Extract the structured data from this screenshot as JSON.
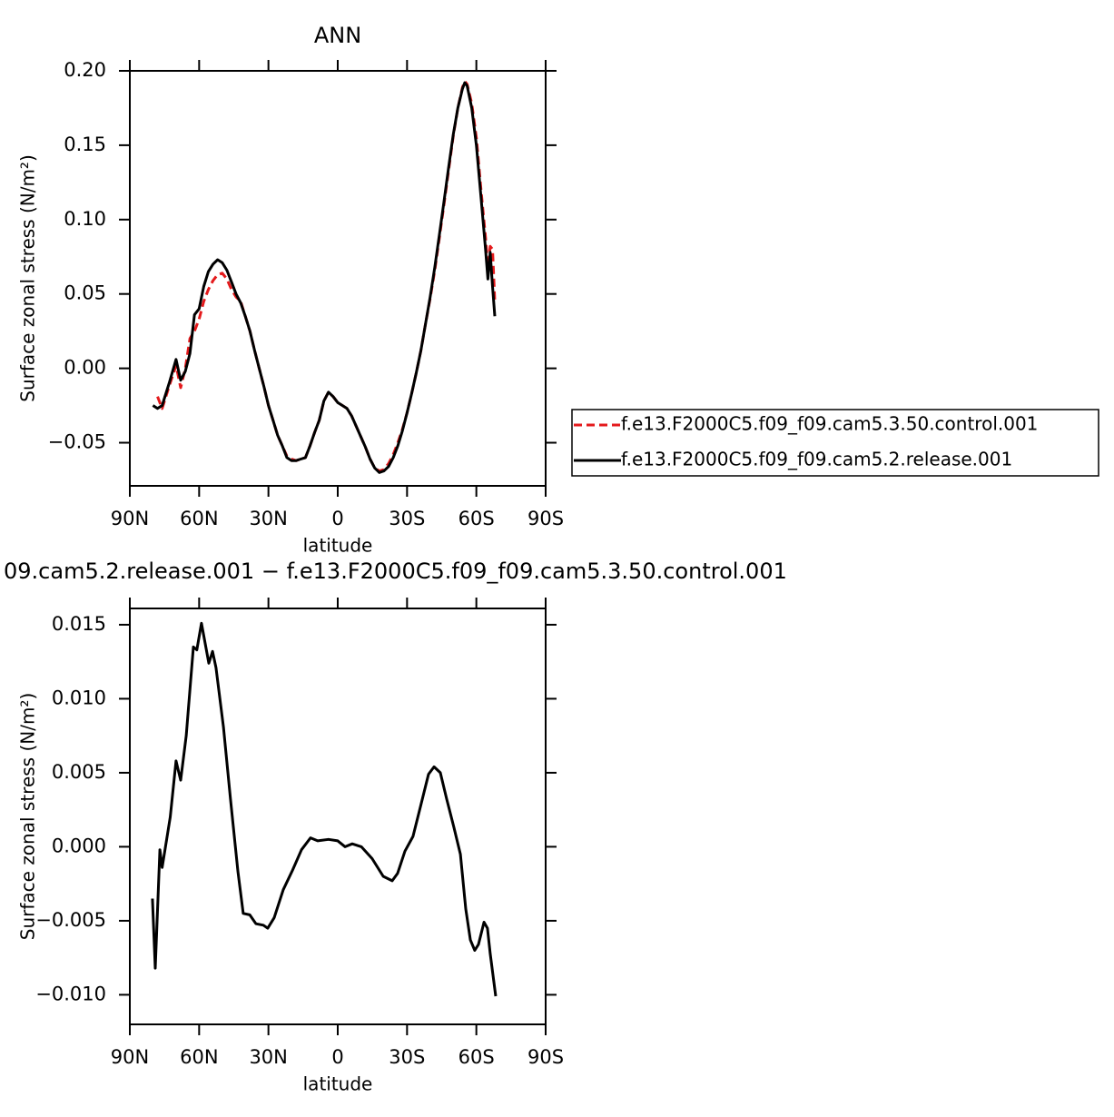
{
  "chart_data": [
    {
      "type": "line",
      "title": "ANN",
      "xlabel": "latitude",
      "ylabel": "Surface zonal stress (N/m²)",
      "x": [
        80,
        78,
        76,
        73,
        70,
        68,
        66,
        64,
        62,
        60,
        58,
        56,
        54,
        52,
        50,
        48,
        46,
        44,
        42,
        40,
        38,
        36,
        34,
        32,
        30,
        28,
        26,
        24,
        22,
        20,
        18,
        16,
        14,
        12,
        10,
        8,
        6,
        4,
        2,
        0,
        -2,
        -4,
        -6,
        -8,
        -10,
        -12,
        -14,
        -16,
        -18,
        -20,
        -22,
        -24,
        -26,
        -28,
        -30,
        -32,
        -34,
        -36,
        -38,
        -40,
        -42,
        -44,
        -46,
        -48,
        -50,
        -52,
        -54,
        -55,
        -56,
        -58,
        -60,
        -62,
        -64,
        -65,
        -66,
        -67,
        -68
      ],
      "series": [
        {
          "name": "f.e13.F2000C5.f09_f09.cam5.3.50.control.001",
          "color": "#e41a1c",
          "dash": true,
          "values": [
            null,
            -0.019,
            -0.027,
            -0.012,
            0.002,
            -0.013,
            0.0,
            0.02,
            0.025,
            0.033,
            0.045,
            0.053,
            0.059,
            0.063,
            0.064,
            0.06,
            0.053,
            0.048,
            0.045,
            0.035,
            0.025,
            0.012,
            0.0,
            -0.012,
            -0.025,
            -0.035,
            -0.045,
            -0.052,
            -0.059,
            -0.061,
            -0.062,
            -0.061,
            -0.06,
            -0.052,
            -0.043,
            -0.035,
            -0.022,
            -0.016,
            -0.019,
            -0.023,
            -0.025,
            -0.027,
            -0.032,
            -0.039,
            -0.046,
            -0.053,
            -0.061,
            -0.067,
            -0.069,
            -0.068,
            -0.064,
            -0.058,
            -0.05,
            -0.041,
            -0.03,
            -0.017,
            -0.003,
            0.012,
            0.03,
            0.047,
            0.066,
            0.088,
            0.11,
            0.133,
            0.156,
            0.175,
            0.189,
            0.193,
            0.191,
            0.178,
            0.155,
            0.12,
            0.088,
            0.068,
            0.082,
            0.08,
            0.045
          ]
        },
        {
          "name": "f.e13.F2000C5.f09_f09.cam5.2.release.001",
          "color": "#000000",
          "dash": false,
          "values": [
            -0.025,
            -0.027,
            -0.025,
            -0.01,
            0.006,
            -0.008,
            -0.002,
            0.01,
            0.036,
            0.04,
            0.055,
            0.065,
            0.07,
            0.073,
            0.071,
            0.066,
            0.058,
            0.05,
            0.044,
            0.035,
            0.025,
            0.012,
            0.0,
            -0.012,
            -0.025,
            -0.035,
            -0.045,
            -0.052,
            -0.06,
            -0.062,
            -0.062,
            -0.061,
            -0.06,
            -0.052,
            -0.043,
            -0.035,
            -0.022,
            -0.016,
            -0.019,
            -0.023,
            -0.025,
            -0.027,
            -0.032,
            -0.039,
            -0.046,
            -0.053,
            -0.061,
            -0.067,
            -0.07,
            -0.069,
            -0.066,
            -0.06,
            -0.052,
            -0.042,
            -0.03,
            -0.017,
            -0.003,
            0.012,
            0.03,
            0.048,
            0.068,
            0.09,
            0.112,
            0.135,
            0.157,
            0.175,
            0.188,
            0.192,
            0.19,
            0.175,
            0.15,
            0.115,
            0.08,
            0.06,
            0.078,
            0.055,
            0.035
          ]
        }
      ],
      "xlim": [
        90,
        -90
      ],
      "xticks": [
        {
          "value": 90,
          "label": "90N"
        },
        {
          "value": 60,
          "label": "60N"
        },
        {
          "value": 30,
          "label": "30N"
        },
        0,
        {
          "value": -30,
          "label": "30S"
        },
        {
          "value": -60,
          "label": "60S"
        },
        {
          "value": -90,
          "label": "90S"
        }
      ],
      "ylim": [
        -0.079,
        0.2
      ],
      "yticks": [
        {
          "value": -0.05,
          "label": "−0.05"
        },
        {
          "value": 0,
          "label": "0.00"
        },
        0.05,
        {
          "value": 0.1,
          "label": "0.10"
        },
        0.15,
        {
          "value": 0.2,
          "label": "0.20"
        }
      ],
      "legend": "right"
    },
    {
      "type": "line",
      "title": "09.cam5.2.release.001 − f.e13.F2000C5.f09_f09.cam5.3.50.control.001",
      "xlabel": "latitude",
      "ylabel": "Surface zonal stress (N/m²)",
      "x": [
        80.2,
        79,
        77,
        76,
        72.5,
        70,
        68,
        65.6,
        62.5,
        61,
        59,
        55.8,
        54.2,
        52.7,
        49.5,
        46.4,
        43.2,
        40.9,
        38.1,
        35.4,
        32.2,
        30.3,
        27.5,
        23.6,
        19.6,
        15.7,
        11.8,
        8.7,
        4,
        0,
        -3.2,
        -6.3,
        -10.2,
        -14.9,
        -19.7,
        -23.6,
        -25.9,
        -29.1,
        -32.6,
        -36.6,
        -39.3,
        -41.7,
        -44.4,
        -47.2,
        -50.3,
        -53.1,
        -55.4,
        -57.4,
        -59.3,
        -60.9,
        -63.3,
        -64.8,
        -66,
        -68.4
      ],
      "series": [
        {
          "color": "#000000",
          "dash": false,
          "values": [
            -0.0035,
            -0.0082,
            -0.0002,
            -0.0014,
            0.002,
            0.0058,
            0.0045,
            0.0075,
            0.0135,
            0.0133,
            0.0151,
            0.0124,
            0.0132,
            0.0121,
            0.0081,
            0.0032,
            -0.0017,
            -0.0045,
            -0.0046,
            -0.0052,
            -0.0053,
            -0.0055,
            -0.0048,
            -0.0029,
            -0.0016,
            -0.0002,
            0.0006,
            0.0004,
            0.0005,
            0.0004,
            0.0,
            0.0002,
            0.0,
            -0.0008,
            -0.002,
            -0.0023,
            -0.0018,
            -0.0003,
            0.0007,
            0.0032,
            0.0049,
            0.0054,
            0.005,
            0.0032,
            0.0013,
            -0.0005,
            -0.0042,
            -0.0063,
            -0.007,
            -0.0066,
            -0.0051,
            -0.0055,
            -0.0072,
            -0.0101
          ]
        }
      ],
      "xlim": [
        90,
        -90
      ],
      "xticks": [
        {
          "value": 90,
          "label": "90N"
        },
        {
          "value": 60,
          "label": "60N"
        },
        {
          "value": 30,
          "label": "30N"
        },
        0,
        {
          "value": -30,
          "label": "30S"
        },
        {
          "value": -60,
          "label": "60S"
        },
        {
          "value": -90,
          "label": "90S"
        }
      ],
      "ylim": [
        -0.012,
        0.0161
      ],
      "yticks": [
        {
          "value": -0.01,
          "label": "−0.010"
        },
        {
          "value": -0.005,
          "label": "−0.005"
        },
        {
          "value": 0,
          "label": "0.000"
        },
        0.005,
        {
          "value": 0.01,
          "label": "0.010"
        },
        0.015
      ]
    }
  ]
}
